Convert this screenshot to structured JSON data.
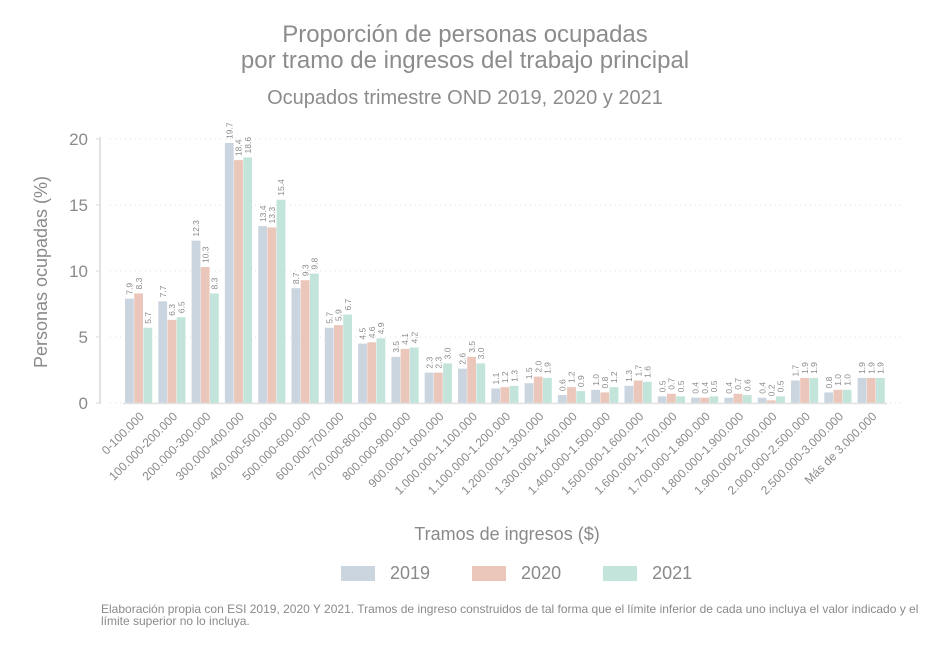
{
  "chart_data": {
    "type": "bar",
    "title": "Proporción de personas ocupadas",
    "title_line2": "por tramo de ingresos del trabajo principal",
    "subtitle": "Ocupados trimestre OND 2019, 2020 y 2021",
    "xlabel": "Tramos de ingresos ($)",
    "ylabel": "Personas ocupadas (%)",
    "ylim": [
      0,
      20
    ],
    "yticks": [
      0,
      5,
      10,
      15,
      20
    ],
    "grid": true,
    "legend_position": "bottom",
    "categories": [
      "0-100.000",
      "100.000-200.000",
      "200.000-300.000",
      "300.000-400.000",
      "400.000-500.000",
      "500.000-600.000",
      "600.000-700.000",
      "700.000-800.000",
      "800.000-900.000",
      "900.000-1.000.000",
      "1.000.000-1.100.000",
      "1.100.000-1.200.000",
      "1.200.000-1.300.000",
      "1.300.000-1.400.000",
      "1.400.000-1.500.000",
      "1.500.000-1.600.000",
      "1.600.000-1.700.000",
      "1.700.000-1.800.000",
      "1.800.000-1.900.000",
      "1.900.000-2.000.000",
      "2.000.000-2.500.000",
      "2.500.000-3.000.000",
      "Más de 3.000.000"
    ],
    "series": [
      {
        "name": "2019",
        "color": "#cbd5e0",
        "values": [
          7.9,
          7.7,
          12.3,
          19.7,
          13.4,
          8.7,
          5.7,
          4.5,
          3.5,
          2.3,
          2.6,
          1.1,
          1.5,
          0.6,
          1.0,
          1.3,
          0.5,
          0.4,
          0.4,
          0.4,
          1.7,
          0.8,
          1.9
        ]
      },
      {
        "name": "2020",
        "color": "#ebc6ba",
        "values": [
          8.3,
          6.3,
          10.3,
          18.4,
          13.3,
          9.3,
          5.9,
          4.6,
          4.1,
          2.3,
          3.5,
          1.2,
          2.0,
          1.2,
          0.8,
          1.7,
          0.7,
          0.4,
          0.7,
          0.2,
          1.9,
          1.0,
          1.9
        ]
      },
      {
        "name": "2021",
        "color": "#c3e4da",
        "values": [
          5.7,
          6.5,
          8.3,
          18.6,
          15.4,
          9.8,
          6.7,
          4.9,
          4.2,
          3.0,
          3.0,
          1.3,
          1.9,
          0.9,
          1.2,
          1.6,
          0.5,
          0.5,
          0.6,
          0.5,
          1.9,
          1.0,
          1.9
        ]
      }
    ]
  },
  "footer": "Elaboración propia con ESI 2019, 2020 Y 2021. Tramos de ingreso construidos de tal forma que el límite inferior de cada uno incluya el valor indicado y el límite superior no lo incluya."
}
